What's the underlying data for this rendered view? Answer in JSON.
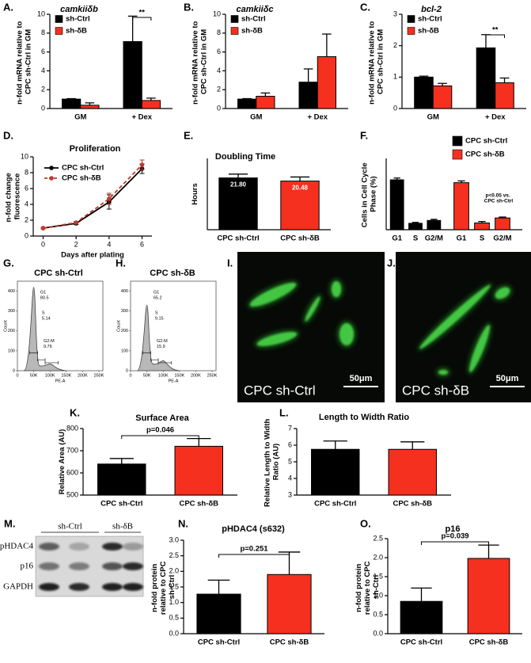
{
  "chart_data": [
    {
      "type": "bar",
      "label": "A.",
      "title": "camkiiδb",
      "ylabel": "n-fold mRNA relative to CPC sh-Ctrl in GM",
      "categories": [
        "GM",
        "+ Dex"
      ],
      "series": [
        {
          "name": "sh-Ctrl",
          "color": "#000000",
          "values": [
            1.0,
            7.1
          ],
          "errors": [
            0.05,
            2.7
          ]
        },
        {
          "name": "sh-δB",
          "color": "#f5301f",
          "values": [
            0.35,
            0.85
          ],
          "errors": [
            0.25,
            0.25
          ]
        }
      ],
      "ylim": [
        0,
        10
      ],
      "yticks": [
        0,
        2,
        4,
        6,
        8,
        10
      ],
      "annotation": "**"
    },
    {
      "type": "bar",
      "label": "B.",
      "title": "camkiiδc",
      "ylabel": "n-fold mRNA relative to CPC sh-Ctrl in GM",
      "categories": [
        "GM",
        "+ Dex"
      ],
      "series": [
        {
          "name": "sh-Ctrl",
          "color": "#000000",
          "values": [
            1.0,
            2.8
          ],
          "errors": [
            0.05,
            1.4
          ]
        },
        {
          "name": "sh-δB",
          "color": "#f5301f",
          "values": [
            1.3,
            5.5
          ],
          "errors": [
            0.35,
            2.4
          ]
        }
      ],
      "ylim": [
        0,
        10
      ],
      "yticks": [
        0,
        2,
        4,
        6,
        8,
        10
      ]
    },
    {
      "type": "bar",
      "label": "C.",
      "title": "bcl-2",
      "ylabel": "n-fold mRNA relative to CPC sh-Ctrl in GM",
      "categories": [
        "GM",
        "+ Dex"
      ],
      "series": [
        {
          "name": "sh-Ctrl",
          "color": "#000000",
          "values": [
            1.0,
            1.93
          ],
          "errors": [
            0.03,
            0.42
          ]
        },
        {
          "name": "sh-δB",
          "color": "#f5301f",
          "values": [
            0.72,
            0.82
          ],
          "errors": [
            0.08,
            0.15
          ]
        }
      ],
      "ylim": [
        0,
        3
      ],
      "yticks": [
        0,
        1,
        2,
        3
      ],
      "annotation": "**"
    },
    {
      "type": "line",
      "label": "D.",
      "title": "Proliferation",
      "xlabel": "Days after plating",
      "ylabel": "n-fold change fluorescence",
      "x": [
        0,
        2,
        4,
        6
      ],
      "series": [
        {
          "name": "CPC sh-Ctrl",
          "color": "#000000",
          "style": "solid",
          "values": [
            1.0,
            1.6,
            4.3,
            8.5
          ],
          "errors": [
            0.1,
            0.15,
            0.9,
            0.6
          ]
        },
        {
          "name": "CPC sh-δB",
          "color": "#c0392b",
          "style": "dashed",
          "values": [
            1.0,
            1.7,
            4.7,
            9.0
          ],
          "errors": [
            0.1,
            0.15,
            0.7,
            0.6
          ]
        }
      ],
      "xlim": [
        -0.6,
        6.6
      ],
      "xticks": [
        0,
        2,
        4,
        6
      ],
      "ylim": [
        0,
        10
      ],
      "yticks": [
        0,
        2,
        4,
        6,
        8,
        10
      ]
    },
    {
      "type": "bar",
      "label": "E.",
      "title": "Doubling Time",
      "ylabel": "Hours",
      "categories": [
        "CPC sh-Ctrl",
        "CPC sh-δB"
      ],
      "values": [
        21.8,
        20.48
      ],
      "value_labels": [
        "21.80",
        "20.48"
      ],
      "errors": [
        1.6,
        1.7
      ],
      "colors": [
        "#000000",
        "#f5301f"
      ],
      "ylim": [
        0,
        30
      ]
    },
    {
      "type": "bar",
      "label": "F.",
      "ylabel": "Cells in Cell Cycle Phase (%)",
      "categories": [
        "G1",
        "S",
        "G2/M"
      ],
      "series": [
        {
          "name": "CPC sh-Ctrl",
          "color": "#000000",
          "values": [
            70,
            9,
            13
          ],
          "errors": [
            2.5,
            1.2,
            1.5
          ]
        },
        {
          "name": "CPC sh-δB",
          "color": "#f5301f",
          "values": [
            66,
            9.5,
            16.5
          ],
          "errors": [
            2.5,
            2,
            1.2
          ]
        }
      ],
      "ylim": [
        0,
        100
      ],
      "annotation": "p<0.05 vs. CPC sh-Ctrl"
    },
    {
      "type": "bar",
      "label": "K.",
      "title": "Surface Area",
      "ylabel": "Relative Area (AU)",
      "categories": [
        "CPC sh-Ctrl",
        "CPC sh-δB"
      ],
      "values": [
        640,
        720
      ],
      "errors": [
        25,
        35
      ],
      "colors": [
        "#000000",
        "#f5301f"
      ],
      "ylim": [
        500,
        800
      ],
      "yticks": [
        500,
        600,
        700,
        800
      ],
      "annotation": "p=0.046"
    },
    {
      "type": "bar",
      "label": "L.",
      "title": "Length to Width Ratio",
      "ylabel": "Relative Length to Width Ratio (AU)",
      "categories": [
        "CPC sh-Ctrl",
        "CPC sh-δB"
      ],
      "values": [
        5.75,
        5.75
      ],
      "errors": [
        0.5,
        0.45
      ],
      "colors": [
        "#000000",
        "#f5301f"
      ],
      "ylim": [
        3,
        7
      ],
      "yticks": [
        3,
        4,
        5,
        6,
        7
      ]
    },
    {
      "type": "bar",
      "label": "N.",
      "title": "pHDAC4 (s632)",
      "ylabel": "n-fold protein relative to CPC sh-Ctrl",
      "categories": [
        "CPC sh-Ctrl",
        "CPC sh-δB"
      ],
      "values": [
        1.27,
        1.9
      ],
      "errors": [
        0.45,
        0.72
      ],
      "colors": [
        "#000000",
        "#f5301f"
      ],
      "ylim": [
        0,
        3
      ],
      "yticks": [
        {
          "value": 0,
          "label": "0.0"
        },
        0.5,
        {
          "value": 1,
          "label": "1.0"
        },
        1.5,
        {
          "value": 2,
          "label": "2.0"
        },
        2.5,
        {
          "value": 3,
          "label": "3.0"
        }
      ],
      "annotation": "p=0.251"
    },
    {
      "type": "bar",
      "label": "O.",
      "title": "p16",
      "ylabel": "n-fold protein relative to CPC sh-Ctrl",
      "categories": [
        "CPC sh-Ctrl",
        "CPC sh-δB"
      ],
      "values": [
        0.85,
        1.98
      ],
      "errors": [
        0.35,
        0.35
      ],
      "colors": [
        "#000000",
        "#f5301f"
      ],
      "ylim": [
        0,
        2.5
      ],
      "yticks": [
        {
          "value": 0,
          "label": "0.0"
        },
        0.5,
        {
          "value": 1,
          "label": "1.0"
        },
        1.5,
        {
          "value": 2,
          "label": "2.0"
        },
        2.5
      ],
      "annotation": "p=0.039"
    }
  ],
  "flow": [
    {
      "label": "G.",
      "title": "CPC sh-Ctrl",
      "ylabel": "Count",
      "xlabel": "PE-A",
      "gates": [
        {
          "name": "G1",
          "value": 80.5
        },
        {
          "name": "S",
          "value": 5.14
        },
        {
          "name": "G2-M",
          "value": 9.76
        }
      ],
      "xlim": [
        0,
        262144
      ],
      "ylim": [
        0,
        450
      ],
      "yticks": [
        0,
        100,
        200,
        300,
        400
      ],
      "xticks": [
        0,
        {
          "value": 50000,
          "label": "50K"
        },
        {
          "value": 100000,
          "label": "100K"
        },
        {
          "value": 150000,
          "label": "150K"
        },
        {
          "value": 200000,
          "label": "200K"
        },
        {
          "value": 250000,
          "label": "250K"
        }
      ]
    },
    {
      "label": "H.",
      "title": "CPC sh-δB",
      "ylabel": "Count",
      "xlabel": "PE-A",
      "gates": [
        {
          "name": "G1",
          "value": 65.2
        },
        {
          "name": "S",
          "value": 9.15
        },
        {
          "name": "G2-M",
          "value": 15.9
        }
      ],
      "xlim": [
        0,
        262144
      ],
      "ylim": [
        0,
        450
      ],
      "yticks": [
        0,
        100,
        200,
        300,
        400
      ],
      "xticks": [
        0,
        {
          "value": 50000,
          "label": "50K"
        },
        {
          "value": 100000,
          "label": "100K"
        },
        {
          "value": 150000,
          "label": "150K"
        },
        {
          "value": 200000,
          "label": "200K"
        },
        {
          "value": 250000,
          "label": "250K"
        }
      ]
    }
  ],
  "images": [
    {
      "label": "I.",
      "caption": "CPC sh-Ctrl",
      "scale": "50μm"
    },
    {
      "label": "J.",
      "caption": "CPC sh-δB",
      "scale": "50μm"
    }
  ],
  "blot": {
    "label": "M.",
    "columns": [
      "sh-Ctrl",
      "sh-δB"
    ],
    "rows": [
      "pHDAC4",
      "p16",
      "GAPDH"
    ]
  }
}
